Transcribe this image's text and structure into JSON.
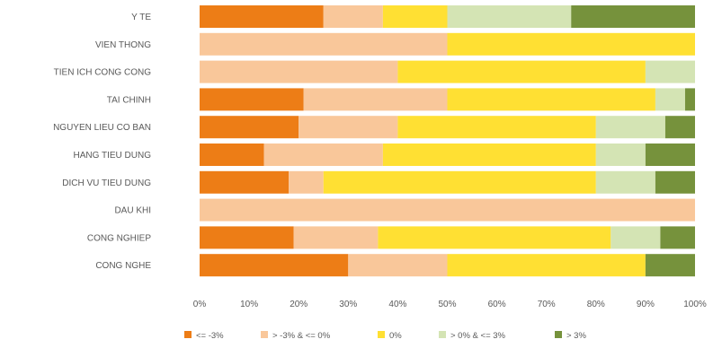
{
  "chart_data": {
    "type": "bar",
    "orientation": "horizontal",
    "stacked": true,
    "percent_stacked": true,
    "categories": [
      "Y TE",
      "VIEN THONG",
      "TIEN ICH CONG CONG",
      "TAI CHINH",
      "NGUYEN LIEU CO BAN",
      "HANG TIEU DUNG",
      "DICH VU TIEU DUNG",
      "DAU KHI",
      "CONG NGHIEP",
      "CONG NGHE"
    ],
    "series": [
      {
        "name": "<= -3%",
        "color": "#ED7D16",
        "values": [
          25,
          0,
          0,
          21,
          20,
          13,
          18,
          0,
          19,
          30
        ]
      },
      {
        "name": "> -3% & <= 0%",
        "color": "#F9C79A",
        "values": [
          12,
          50,
          40,
          29,
          20,
          24,
          7,
          100,
          17,
          20
        ]
      },
      {
        "name": "0%",
        "color": "#FFE033",
        "values": [
          13,
          50,
          50,
          42,
          40,
          43,
          55,
          0,
          47,
          40
        ]
      },
      {
        "name": "> 0% & <= 3%",
        "color": "#D4E4B4",
        "values": [
          25,
          0,
          10,
          6,
          14,
          10,
          12,
          0,
          10,
          0
        ]
      },
      {
        "name": "> 3%",
        "color": "#76923C",
        "values": [
          25,
          0,
          0,
          2,
          6,
          10,
          8,
          0,
          7,
          10
        ]
      }
    ],
    "x_ticks": [
      "0%",
      "10%",
      "20%",
      "30%",
      "40%",
      "50%",
      "60%",
      "70%",
      "80%",
      "90%",
      "100%"
    ],
    "xlim": [
      0,
      100
    ],
    "grid": false,
    "legend_position": "bottom"
  }
}
